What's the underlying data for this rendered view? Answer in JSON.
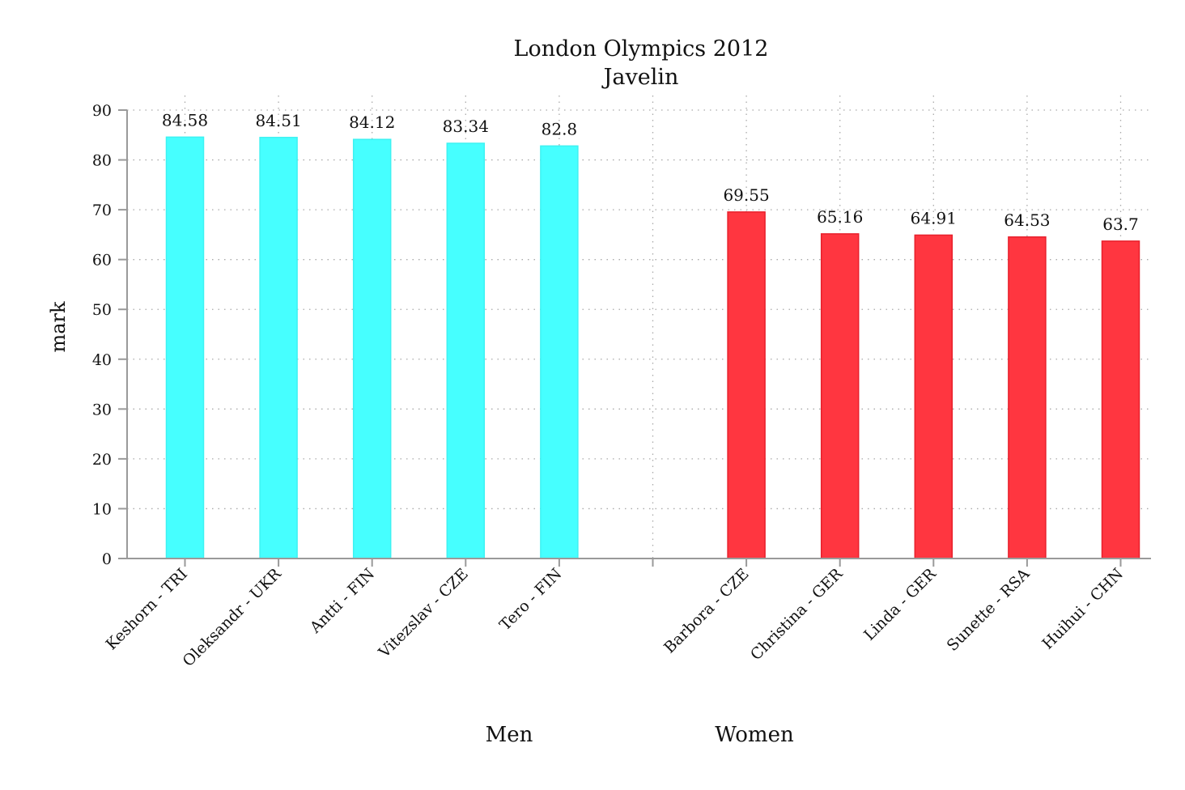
{
  "chart_data": {
    "type": "bar",
    "title": "London Olympics 2012",
    "subtitle": "Javelin",
    "ylabel": "mark",
    "ylim": [
      0,
      90
    ],
    "yticks": [
      0,
      10,
      20,
      30,
      40,
      50,
      60,
      70,
      80,
      90
    ],
    "grid": true,
    "groups": [
      {
        "name": "Men",
        "color": "#46FFFF",
        "edge": "#3EF2F2",
        "categories": [
          "Keshorn - TRI",
          "Oleksandr - UKR",
          "Antti - FIN",
          "Vitezslav - CZE",
          "Tero - FIN"
        ],
        "values": [
          84.58,
          84.51,
          84.12,
          83.34,
          82.8
        ],
        "labels": [
          "84.58",
          "84.51",
          "84.12",
          "83.34",
          "82.8"
        ]
      },
      {
        "name": "Women",
        "color": "#FF3640",
        "edge": "#E8202C",
        "categories": [
          "Barbora - CZE",
          "Christina - GER",
          "Linda - GER",
          "Sunette - RSA",
          "Huihui - CHN"
        ],
        "values": [
          69.55,
          65.16,
          64.91,
          64.53,
          63.7
        ],
        "labels": [
          "69.55",
          "65.16",
          "64.91",
          "64.53",
          "63.7"
        ]
      }
    ]
  }
}
